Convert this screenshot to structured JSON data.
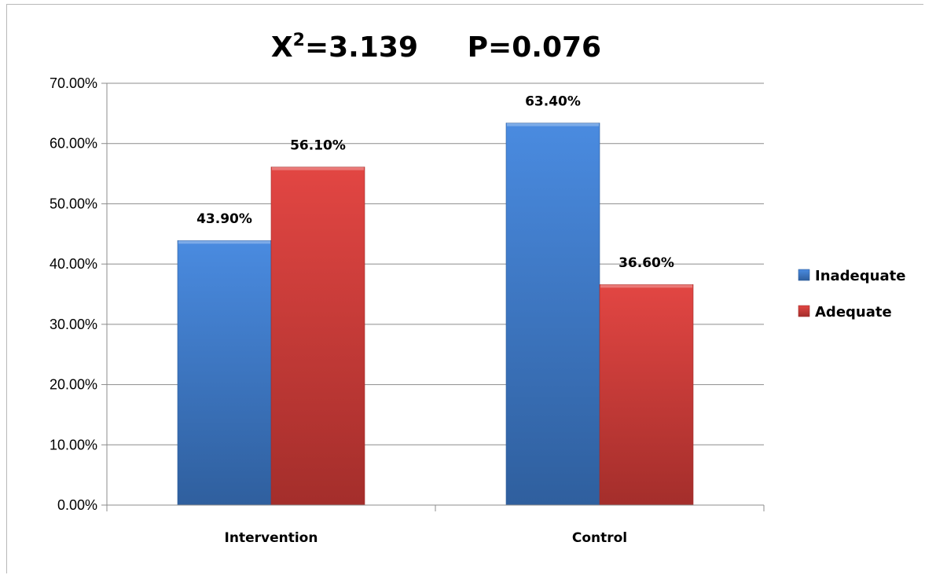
{
  "chart_data": {
    "type": "bar",
    "title_main": "X",
    "title_sup": "2",
    "title_rest": "=3.139     P=0.076",
    "categories": [
      "Intervention",
      "Control"
    ],
    "series": [
      {
        "name": "Inadequate",
        "values": [
          43.9,
          63.4
        ],
        "labels": [
          "43.90%",
          "63.40%"
        ],
        "color": "#3f7fcf",
        "color_dark": "#2c5b9a"
      },
      {
        "name": "Adequate",
        "values": [
          56.1,
          36.6
        ],
        "labels": [
          "56.10%",
          "36.60%"
        ],
        "color": "#d9413e",
        "color_dark": "#a12b29"
      }
    ],
    "ylim": [
      0,
      70
    ],
    "yticks": [
      0,
      10,
      20,
      30,
      40,
      50,
      60,
      70
    ],
    "ytick_labels": [
      "0.00%",
      "10.00%",
      "20.00%",
      "30.00%",
      "40.00%",
      "50.00%",
      "60.00%",
      "70.00%"
    ],
    "grid": true,
    "legend_position": "right"
  }
}
